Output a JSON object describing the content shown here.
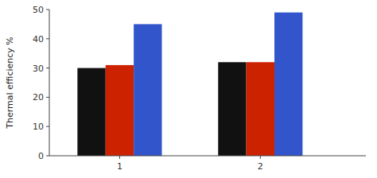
{
  "chart_data": {
    "type": "bar",
    "ylabel": "Thermal efficiency %",
    "x": [
      1,
      2
    ],
    "series": [
      {
        "color": "#111111",
        "values": [
          30,
          32
        ]
      },
      {
        "color": "#cc2200",
        "values": [
          31,
          32
        ]
      },
      {
        "color": "#3355cc",
        "values": [
          45,
          49
        ]
      }
    ],
    "xlim": [
      0.5,
      2.75
    ],
    "xticks": [
      1,
      2
    ],
    "ylim": [
      0,
      50
    ],
    "yticks": [
      0,
      10,
      20,
      30,
      40,
      50
    ],
    "grid": false
  }
}
